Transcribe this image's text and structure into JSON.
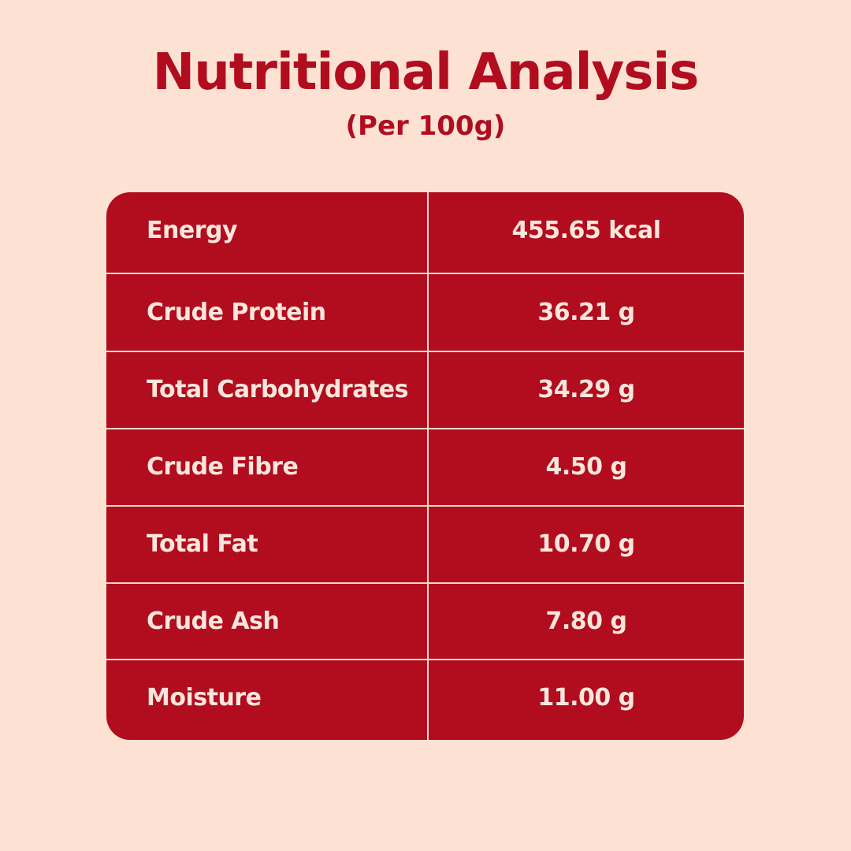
{
  "header": {
    "title": "Nutritional Analysis",
    "subtitle": "(Per 100g)"
  },
  "table": {
    "rows": [
      {
        "label": "Energy",
        "value": "455.65 kcal"
      },
      {
        "label": "Crude Protein",
        "value": "36.21 g"
      },
      {
        "label": "Total Carbohydrates",
        "value": "34.29 g"
      },
      {
        "label": "Crude Fibre",
        "value": "4.50 g"
      },
      {
        "label": "Total Fat",
        "value": "10.70 g"
      },
      {
        "label": "Crude Ash",
        "value": "7.80 g"
      },
      {
        "label": "Moisture",
        "value": "11.00 g"
      }
    ]
  },
  "colors": {
    "background": "#fde2d4",
    "accent": "#b10d1f",
    "table_text": "#fbe6dc"
  }
}
